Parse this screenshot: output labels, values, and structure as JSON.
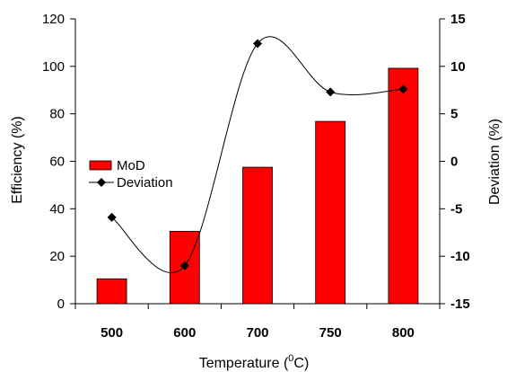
{
  "chart_data": {
    "type": "bar",
    "categories": [
      "500",
      "600",
      "700",
      "750",
      "800"
    ],
    "series": [
      {
        "name": "MoD",
        "kind": "bar",
        "axis": "left",
        "color": "#ff0000",
        "values": [
          10.5,
          30.5,
          57.5,
          76.8,
          99.2
        ]
      },
      {
        "name": "Deviation",
        "kind": "line",
        "axis": "right",
        "color": "#000000",
        "marker": "diamond",
        "values": [
          -5.9,
          -11.0,
          12.4,
          7.3,
          7.6
        ]
      }
    ],
    "xlabel": "Temperature (",
    "xlabel_sup": "0",
    "xlabel_suffix": "C)",
    "ylabel_left": "Efficiency (%)",
    "ylabel_right": "Deviation (%)",
    "ylim_left": [
      0,
      120
    ],
    "ylim_right": [
      -15,
      15
    ],
    "yticks_left": [
      "0",
      "20",
      "40",
      "60",
      "80",
      "100",
      "120"
    ],
    "yticks_right": [
      "-15",
      "-10",
      "-5",
      "0",
      "5",
      "10",
      "15"
    ],
    "grid": false,
    "legend_position": "middle-left"
  }
}
